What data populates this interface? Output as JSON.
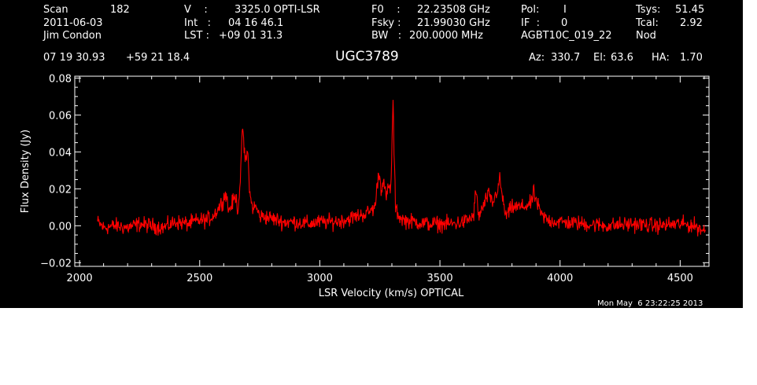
{
  "header": {
    "scan_label": "Scan",
    "scan_value": "182",
    "date": "2011-06-03",
    "observer": "Jim Condon",
    "v_label": "V    :",
    "v_value": "3325.0 OPTI-LSR",
    "int_label": "Int   :",
    "int_value": "04 16 46.1",
    "lst_label": "LST :",
    "lst_value": "+09 01 31.3",
    "f0_label": "F0    :",
    "f0_value": "22.23508 GHz",
    "fsky_label": "Fsky :",
    "fsky_value": "21.99030 GHz",
    "bw_label": "BW   :",
    "bw_value": "200.0000 MHz",
    "pol_label": "Pol:",
    "pol_value": "I",
    "if_label": "IF  :",
    "if_value": "0",
    "project": "AGBT10C_019_22",
    "tsys_label": "Tsys:",
    "tsys_value": "51.45",
    "tcal_label": "Tcal:",
    "tcal_value": "2.92",
    "mode": "Nod",
    "ra": "07 19 30.93",
    "dec": "+59 21 18.4",
    "source": "UGC3789",
    "az_label": "Az:",
    "az_value": "330.7",
    "el_label": "El:",
    "el_value": "63.6",
    "ha_label": "HA:",
    "ha_value": "1.70",
    "timestamp": "Mon May  6 23:22:25 2013"
  },
  "colors": {
    "background": "#000000",
    "foreground": "#ffffff",
    "spectrum": "#ff0000"
  },
  "chart_data": {
    "type": "line",
    "title": "",
    "xlabel": "LSR Velocity (km/s) OPTICAL",
    "ylabel": "Flux Density (Jy)",
    "xlim": [
      1980,
      4620
    ],
    "ylim": [
      -0.022,
      0.081
    ],
    "xticks": [
      2000,
      2500,
      3000,
      3500,
      4000,
      4500
    ],
    "xtick_labels": [
      "2000",
      "2500",
      "3000",
      "3500",
      "4000",
      "4500"
    ],
    "yticks": [
      -0.02,
      0.0,
      0.02,
      0.04,
      0.06,
      0.08
    ],
    "ytick_labels": [
      "−0.02",
      "0.00",
      "0.02",
      "0.04",
      "0.06",
      "0.08"
    ],
    "grid": false,
    "series": [
      {
        "x": [
          2075,
          2100,
          2150,
          2200,
          2250,
          2300,
          2350,
          2400,
          2450,
          2500,
          2530,
          2560,
          2590,
          2610,
          2620,
          2635,
          2650,
          2660,
          2670,
          2680,
          2685,
          2690,
          2700,
          2710,
          2720,
          2735,
          2750,
          2770,
          2800,
          2850,
          2900,
          2950,
          3000,
          3050,
          3100,
          3150,
          3200,
          3230,
          3245,
          3255,
          3265,
          3275,
          3285,
          3295,
          3300,
          3305,
          3310,
          3315,
          3330,
          3350,
          3400,
          3450,
          3500,
          3550,
          3600,
          3640,
          3650,
          3660,
          3680,
          3700,
          3720,
          3740,
          3750,
          3760,
          3775,
          3800,
          3840,
          3880,
          3890,
          3905,
          3920,
          3950,
          4000,
          4100,
          4200,
          4300,
          4400,
          4500,
          4560,
          4605
        ],
        "y": [
          0.002,
          -0.001,
          0.0,
          -0.001,
          0.001,
          0.0,
          -0.001,
          0.002,
          0.001,
          0.003,
          0.003,
          0.006,
          0.012,
          0.018,
          0.008,
          0.012,
          0.016,
          0.008,
          0.028,
          0.056,
          0.04,
          0.035,
          0.04,
          0.015,
          0.01,
          0.01,
          0.005,
          0.005,
          0.004,
          0.002,
          0.002,
          0.001,
          0.002,
          0.002,
          0.003,
          0.005,
          0.007,
          0.01,
          0.03,
          0.02,
          0.025,
          0.015,
          0.02,
          0.02,
          0.04,
          0.069,
          0.035,
          0.01,
          0.005,
          0.003,
          0.002,
          0.001,
          0.001,
          0.001,
          0.002,
          0.005,
          0.02,
          0.005,
          0.01,
          0.017,
          0.012,
          0.02,
          0.025,
          0.015,
          0.005,
          0.01,
          0.01,
          0.012,
          0.018,
          0.012,
          0.006,
          0.003,
          0.002,
          0.001,
          0.0,
          0.001,
          0.0,
          0.001,
          0.0,
          -0.003
        ]
      }
    ]
  }
}
